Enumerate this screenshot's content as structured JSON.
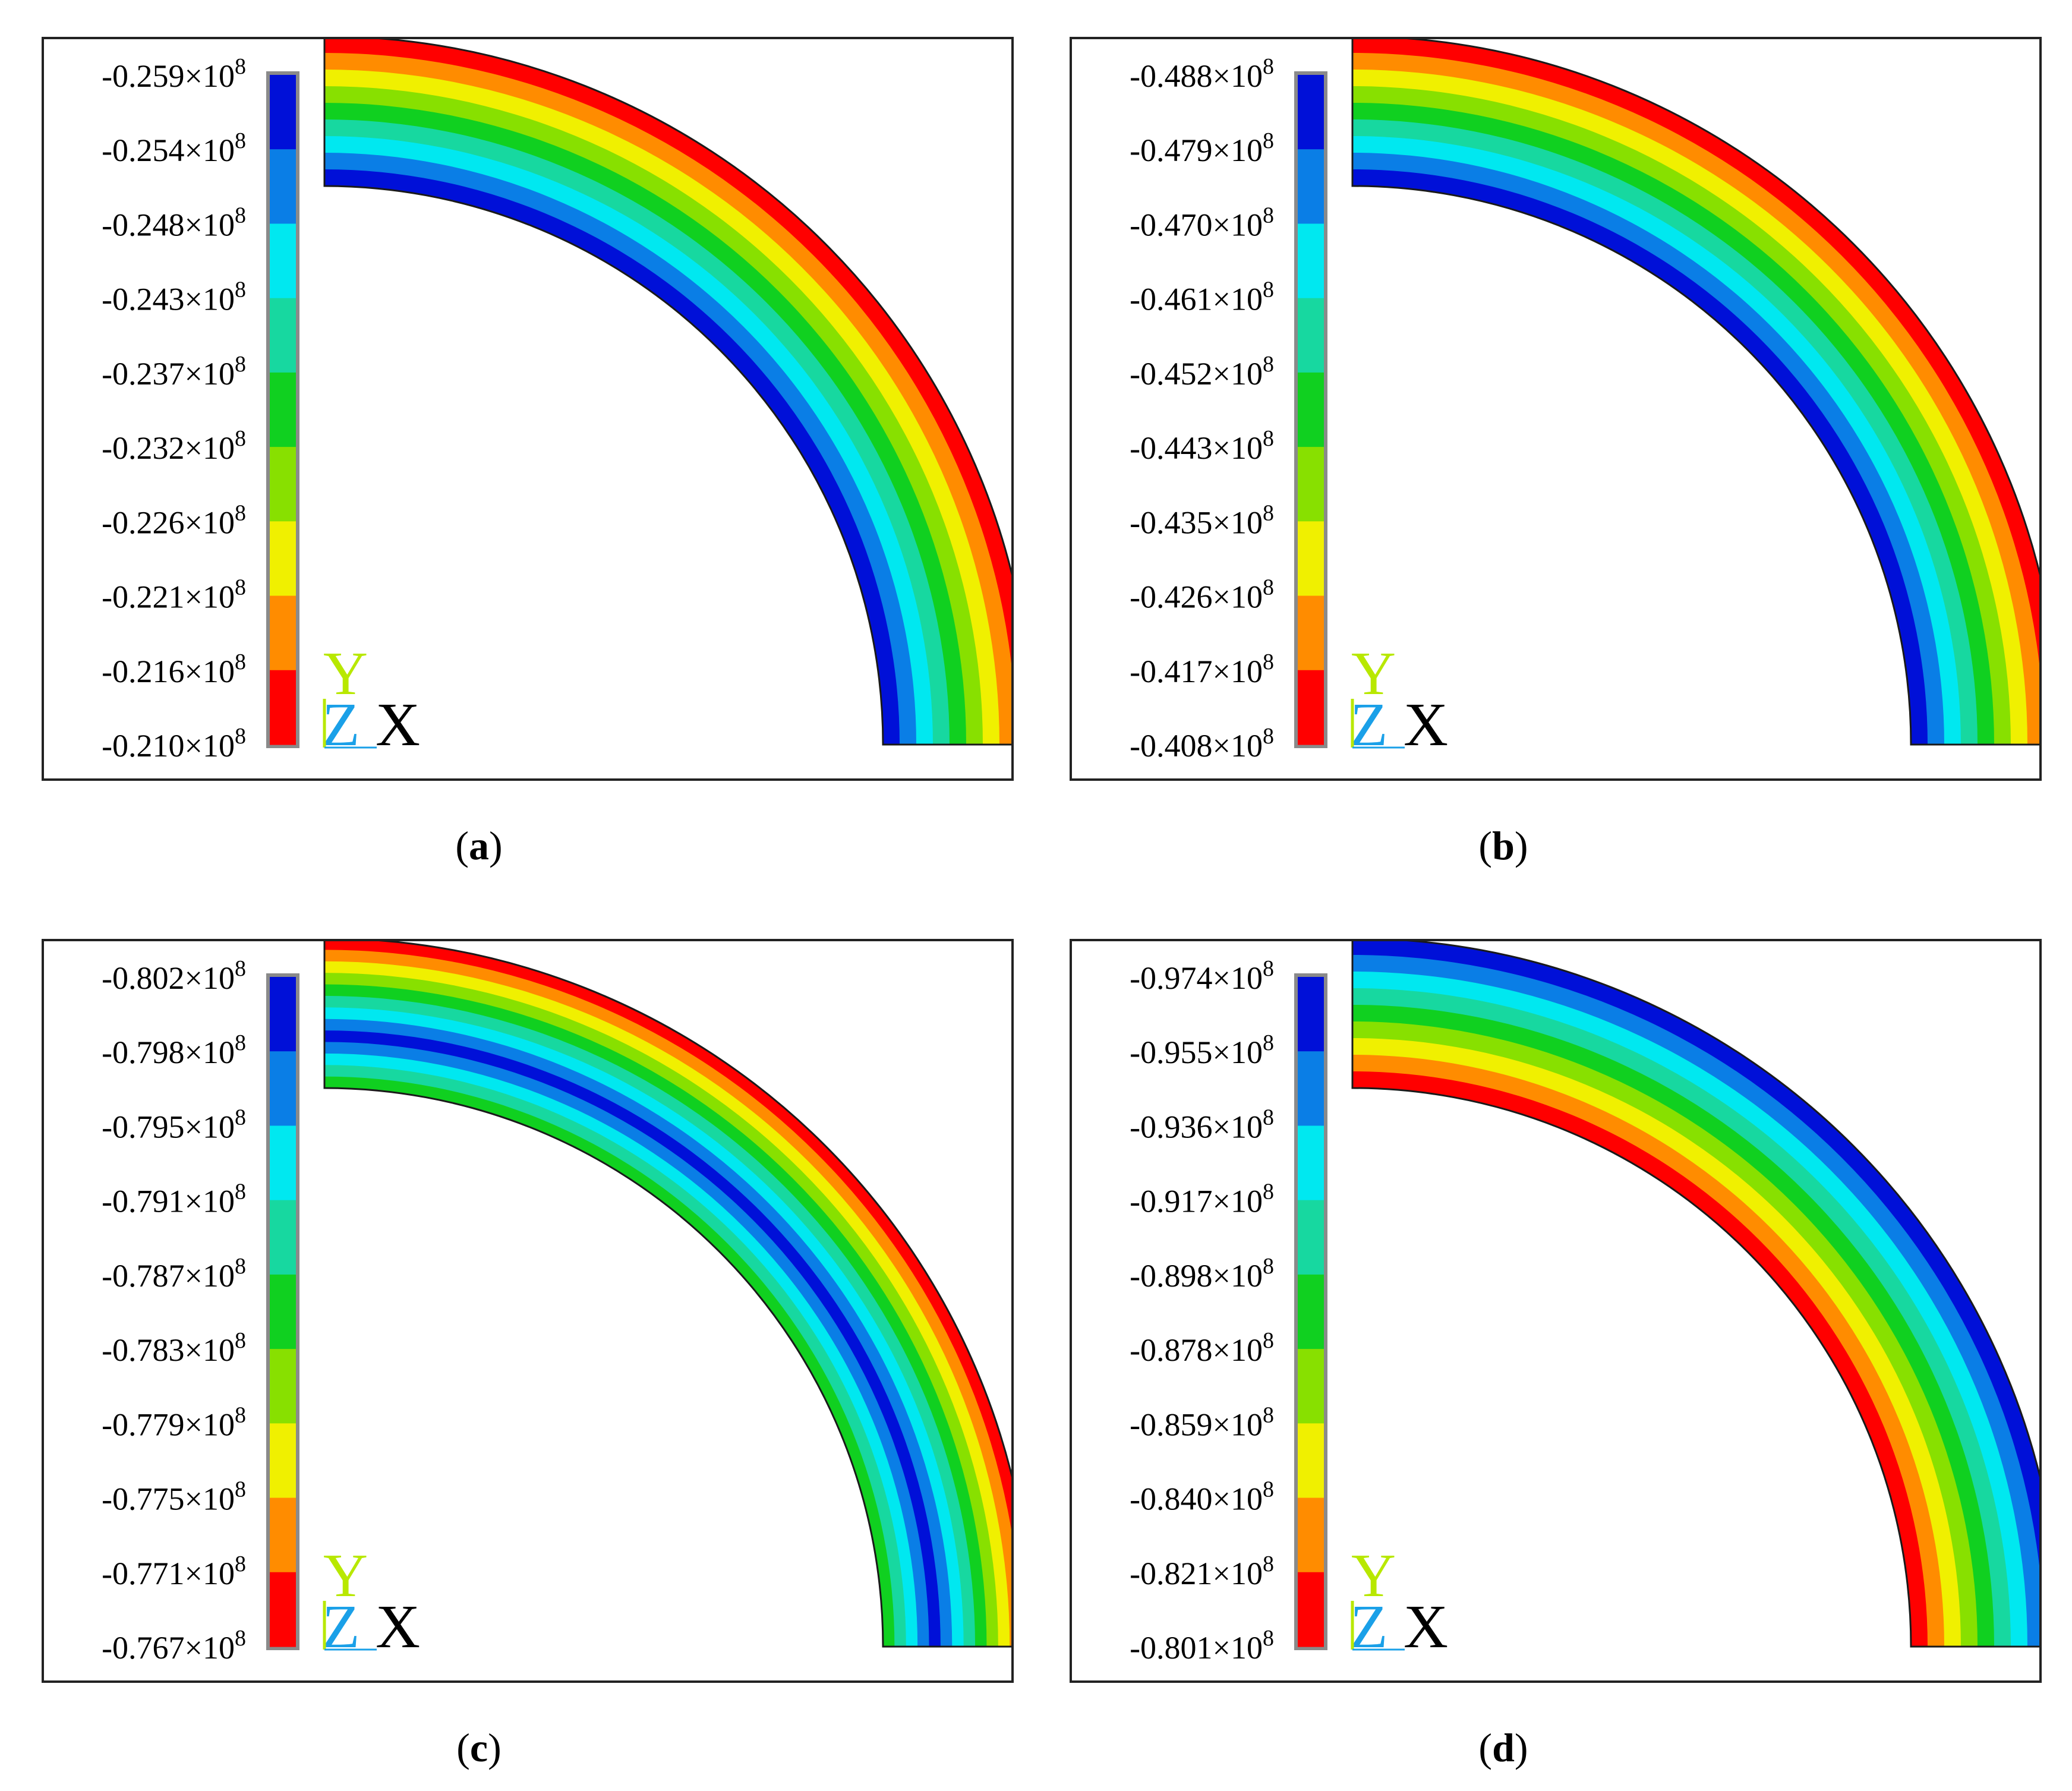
{
  "chart_data": [
    {
      "type": "contour",
      "caption": "a",
      "legend_exponent": "8",
      "legend_labels": [
        "-0.259×10",
        "-0.254×10",
        "-0.248×10",
        "-0.243×10",
        "-0.237×10",
        "-0.232×10",
        "-0.226×10",
        "-0.221×10",
        "-0.216×10",
        "-0.210×10"
      ],
      "legend_values": [
        -25900000.0,
        -25400000.0,
        -24800000.0,
        -24300000.0,
        -23700000.0,
        -23200000.0,
        -22600000.0,
        -22100000.0,
        -21600000.0,
        -21000000.0
      ],
      "band_colors_inner_to_outer": [
        "#0010d8",
        "#0a7ee6",
        "#00e8f0",
        "#17d8a0",
        "#10d020",
        "#88e000",
        "#f0f000",
        "#ff8c00",
        "#ff0000"
      ],
      "triad": {
        "y": "Y",
        "z": "Z",
        "x": "X"
      }
    },
    {
      "type": "contour",
      "caption": "b",
      "legend_exponent": "8",
      "legend_labels": [
        "-0.488×10",
        "-0.479×10",
        "-0.470×10",
        "-0.461×10",
        "-0.452×10",
        "-0.443×10",
        "-0.435×10",
        "-0.426×10",
        "-0.417×10",
        "-0.408×10"
      ],
      "legend_values": [
        -48800000.0,
        -47900000.0,
        -47000000.0,
        -46100000.0,
        -45200000.0,
        -44300000.0,
        -43500000.0,
        -42600000.0,
        -41700000.0,
        -40800000.0
      ],
      "band_colors_inner_to_outer": [
        "#0010d8",
        "#0a7ee6",
        "#00e8f0",
        "#17d8a0",
        "#10d020",
        "#88e000",
        "#f0f000",
        "#ff8c00",
        "#ff0000"
      ],
      "triad": {
        "y": "Y",
        "z": "Z",
        "x": "X"
      }
    },
    {
      "type": "contour",
      "caption": "c",
      "legend_exponent": "8",
      "legend_labels": [
        "-0.802×10",
        "-0.798×10",
        "-0.795×10",
        "-0.791×10",
        "-0.787×10",
        "-0.783×10",
        "-0.779×10",
        "-0.775×10",
        "-0.771×10",
        "-0.767×10"
      ],
      "legend_values": [
        -80200000.0,
        -79800000.0,
        -79500000.0,
        -79100000.0,
        -78700000.0,
        -78300000.0,
        -77900000.0,
        -77500000.0,
        -77100000.0,
        -76700000.0
      ],
      "band_colors_inner_to_outer": [
        "#10d020",
        "#17d8a0",
        "#00e8f0",
        "#0a7ee6",
        "#0010d8",
        "#0a7ee6",
        "#00e8f0",
        "#17d8a0",
        "#10d020",
        "#88e000",
        "#f0f000",
        "#ff8c00",
        "#ff0000"
      ],
      "triad": {
        "y": "Y",
        "z": "Z",
        "x": "X"
      }
    },
    {
      "type": "contour",
      "caption": "d",
      "legend_exponent": "8",
      "legend_labels": [
        "-0.974×10",
        "-0.955×10",
        "-0.936×10",
        "-0.917×10",
        "-0.898×10",
        "-0.878×10",
        "-0.859×10",
        "-0.840×10",
        "-0.821×10",
        "-0.801×10"
      ],
      "legend_values": [
        -97400000.0,
        -95500000.0,
        -93600000.0,
        -91700000.0,
        -89800000.0,
        -87800000.0,
        -85900000.0,
        -84000000.0,
        -82100000.0,
        -80100000.0
      ],
      "band_colors_inner_to_outer": [
        "#ff0000",
        "#ff8c00",
        "#f0f000",
        "#88e000",
        "#10d020",
        "#17d8a0",
        "#00e8f0",
        "#0a7ee6",
        "#0010d8"
      ],
      "triad": {
        "y": "Y",
        "z": "Z",
        "x": "X"
      }
    }
  ],
  "legend_scale_colors_top_to_bottom": [
    "#0010d8",
    "#0a7ee6",
    "#00e8f0",
    "#17d8a0",
    "#10d020",
    "#88e000",
    "#f0f000",
    "#ff8c00",
    "#ff0000"
  ],
  "triad_colors": {
    "y": "#b8e800",
    "z": "#1aa0e8",
    "x": "#000000"
  }
}
